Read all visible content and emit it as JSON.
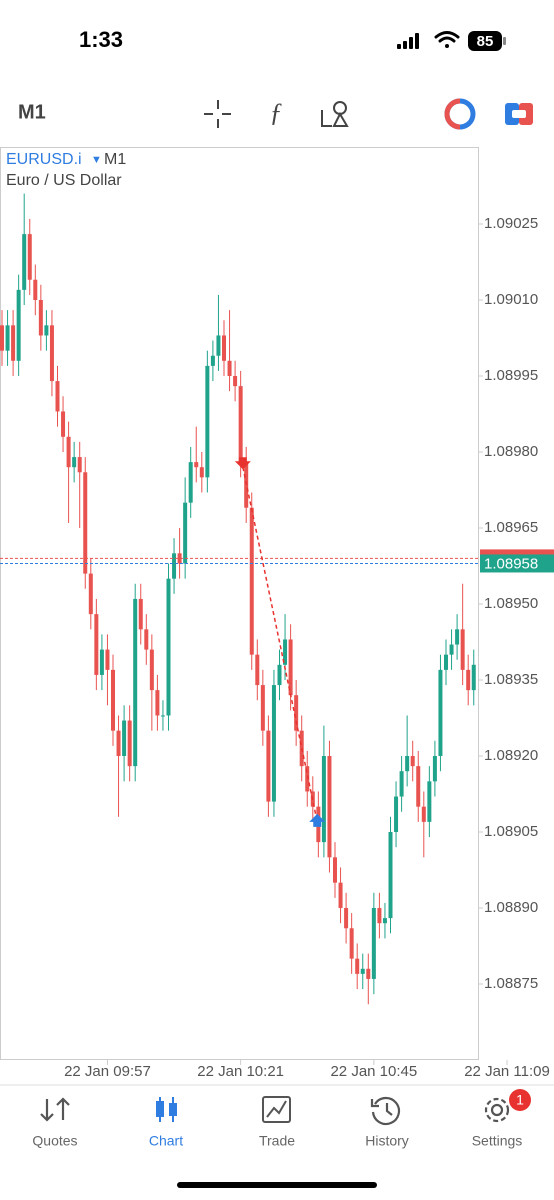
{
  "status_bar": {
    "time": "1:33",
    "battery": "85"
  },
  "toolbar": {
    "timeframe": "M1"
  },
  "chart_data": {
    "type": "candlestick",
    "title": "EURUSD.i",
    "timeframe": "M1",
    "subtitle": "Euro / US Dollar",
    "open": [
      1.09005,
      1.09,
      1.09005,
      1.08998,
      1.09012,
      1.09023,
      1.09014,
      1.0901,
      1.09003,
      1.09005,
      1.08994,
      1.08988,
      1.08983,
      1.08977,
      1.08979,
      1.08976,
      1.08956,
      1.08948,
      1.08936,
      1.08941,
      1.08937,
      1.08925,
      1.0892,
      1.08927,
      1.08918,
      1.08951,
      1.08945,
      1.08941,
      1.08933,
      1.08928,
      1.08928,
      1.08955,
      1.0896,
      1.08958,
      1.0897,
      1.08978,
      1.08977,
      1.08975,
      1.08997,
      1.08999,
      1.09003,
      1.08998,
      1.08995,
      1.08993,
      1.08978,
      1.08969,
      1.0894,
      1.08934,
      1.08925,
      1.08911,
      1.08934,
      1.08938,
      1.08943,
      1.08932,
      1.08925,
      1.08918,
      1.08913,
      1.0891,
      1.08903,
      1.0892,
      1.089,
      1.08895,
      1.0889,
      1.08886,
      1.0888,
      1.08877,
      1.08878,
      1.08876,
      1.0889,
      1.08887,
      1.08888,
      1.08905,
      1.08912,
      1.08917,
      1.0892,
      1.08918,
      1.0891,
      1.08907,
      1.08915,
      1.0892,
      1.08937,
      1.0894,
      1.08942,
      1.08945,
      1.08937,
      1.08933
    ],
    "high": [
      1.09008,
      1.09008,
      1.09008,
      1.09015,
      1.09031,
      1.09026,
      1.09017,
      1.09013,
      1.09008,
      1.09008,
      1.08997,
      1.08991,
      1.08986,
      1.08982,
      1.08982,
      1.08979,
      1.08959,
      1.08951,
      1.08944,
      1.08944,
      1.0894,
      1.08928,
      1.0893,
      1.0893,
      1.08954,
      1.08954,
      1.08948,
      1.08944,
      1.08936,
      1.08931,
      1.08958,
      1.08963,
      1.08965,
      1.08975,
      1.08981,
      1.08985,
      1.0898,
      1.09,
      1.09002,
      1.09011,
      1.09006,
      1.09008,
      1.08998,
      1.08996,
      1.08981,
      1.08972,
      1.08943,
      1.08937,
      1.08928,
      1.08937,
      1.08941,
      1.08948,
      1.08946,
      1.08935,
      1.08928,
      1.08921,
      1.08916,
      1.08913,
      1.08926,
      1.08923,
      1.08903,
      1.08898,
      1.08893,
      1.08889,
      1.08883,
      1.08881,
      1.08881,
      1.08893,
      1.08893,
      1.08891,
      1.08908,
      1.08915,
      1.0892,
      1.08928,
      1.08923,
      1.08921,
      1.08913,
      1.08918,
      1.08923,
      1.0894,
      1.08943,
      1.08945,
      1.08948,
      1.08954,
      1.0894,
      1.08941
    ],
    "low": [
      1.08997,
      1.08997,
      1.08995,
      1.08995,
      1.09009,
      1.09011,
      1.09007,
      1.09,
      1.09,
      1.08991,
      1.08985,
      1.0898,
      1.08966,
      1.08974,
      1.08965,
      1.08953,
      1.08945,
      1.08933,
      1.08933,
      1.0893,
      1.08922,
      1.08908,
      1.08915,
      1.08915,
      1.08915,
      1.08942,
      1.08938,
      1.08925,
      1.08925,
      1.08925,
      1.08925,
      1.08952,
      1.08955,
      1.08955,
      1.08967,
      1.08974,
      1.08972,
      1.08972,
      1.08994,
      1.08996,
      1.08995,
      1.08992,
      1.0899,
      1.08975,
      1.08966,
      1.08937,
      1.08931,
      1.08922,
      1.08908,
      1.08908,
      1.08931,
      1.08935,
      1.08929,
      1.08922,
      1.08915,
      1.0891,
      1.08907,
      1.089,
      1.089,
      1.08897,
      1.08892,
      1.08887,
      1.08883,
      1.08877,
      1.08874,
      1.08874,
      1.08871,
      1.08873,
      1.08884,
      1.08884,
      1.08885,
      1.08902,
      1.08909,
      1.08914,
      1.08915,
      1.08907,
      1.089,
      1.08904,
      1.08912,
      1.08917,
      1.08934,
      1.08937,
      1.08939,
      1.08934,
      1.0893,
      1.0893
    ],
    "close": [
      1.09,
      1.09005,
      1.08998,
      1.09012,
      1.09023,
      1.09014,
      1.0901,
      1.09003,
      1.09005,
      1.08994,
      1.08988,
      1.08983,
      1.08977,
      1.08979,
      1.08976,
      1.08956,
      1.08948,
      1.08936,
      1.08941,
      1.08937,
      1.08925,
      1.0892,
      1.08927,
      1.08918,
      1.08951,
      1.08945,
      1.08941,
      1.08933,
      1.08928,
      1.08928,
      1.08955,
      1.0896,
      1.08958,
      1.0897,
      1.08978,
      1.08977,
      1.08975,
      1.08997,
      1.08999,
      1.09003,
      1.08998,
      1.08995,
      1.08993,
      1.08978,
      1.08969,
      1.0894,
      1.08934,
      1.08925,
      1.08911,
      1.08934,
      1.08938,
      1.08943,
      1.08932,
      1.08925,
      1.08918,
      1.08913,
      1.0891,
      1.08903,
      1.0892,
      1.089,
      1.08895,
      1.0889,
      1.08886,
      1.0888,
      1.08877,
      1.08878,
      1.08876,
      1.0889,
      1.08887,
      1.08888,
      1.08905,
      1.08912,
      1.08917,
      1.0892,
      1.08918,
      1.0891,
      1.08907,
      1.08915,
      1.0892,
      1.08937,
      1.0894,
      1.08942,
      1.08945,
      1.08937,
      1.08933,
      1.08938
    ],
    "up_color": "#1fa38b",
    "down_color": "#e8524f",
    "ylim": [
      1.0886,
      1.0904
    ],
    "yticks": [
      1.09025,
      {
        "value": 1.0901,
        "label": "1.09010"
      },
      1.08995,
      {
        "value": 1.0898,
        "label": "1.08980"
      },
      1.08965,
      {
        "value": 1.0895,
        "label": "1.08950"
      },
      1.08935,
      {
        "value": 1.0892,
        "label": "1.08920"
      },
      1.08905,
      {
        "value": 1.0889,
        "label": "1.08890"
      },
      1.08875
    ],
    "bid": 1.08958,
    "ask": 1.08959,
    "x_labels": [
      "22 Jan 09:57",
      "22 Jan 10:21",
      "22 Jan 10:45",
      "22 Jan 11:09"
    ],
    "trade": {
      "entry": 1.08977,
      "exit": 1.08907
    }
  },
  "nav": [
    "Quotes",
    "Chart",
    "Trade",
    "History",
    "Settings"
  ],
  "settings_badge": "1"
}
